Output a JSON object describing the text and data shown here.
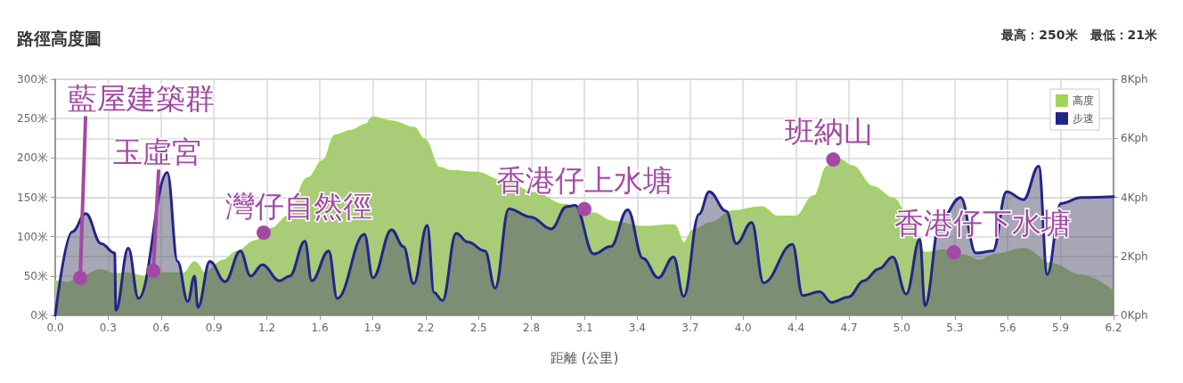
{
  "chart_data": {
    "type": "area",
    "title": "路徑高度圖",
    "subtitle": "最高：250米　最低：21米",
    "xlabel": "距離 (公里)",
    "xlim": [
      0,
      6.23
    ],
    "xticks": [
      {
        "value": 0,
        "label": "0.0"
      },
      {
        "value": 0.3115,
        "label": "0.3"
      },
      {
        "value": 0.623,
        "label": "0.6"
      },
      {
        "value": 0.9345,
        "label": "0.9"
      },
      {
        "value": 1.246,
        "label": "1.2"
      },
      {
        "value": 1.5575,
        "label": "1.6"
      },
      {
        "value": 1.869,
        "label": "1.9"
      },
      {
        "value": 2.1805,
        "label": "2.2"
      },
      {
        "value": 2.492,
        "label": "2.5"
      },
      {
        "value": 2.8035,
        "label": "2.8"
      },
      {
        "value": 3.115,
        "label": "3.1"
      },
      {
        "value": 3.4265,
        "label": "3.4"
      },
      {
        "value": 3.738,
        "label": "3.7"
      },
      {
        "value": 4.0495,
        "label": "4.0"
      },
      {
        "value": 4.361,
        "label": "4.4"
      },
      {
        "value": 4.6725,
        "label": "4.7"
      },
      {
        "value": 4.984,
        "label": "5.0"
      },
      {
        "value": 5.2955,
        "label": "5.3"
      },
      {
        "value": 5.607,
        "label": "5.6"
      },
      {
        "value": 5.9185,
        "label": "5.9"
      },
      {
        "value": 6.23,
        "label": "6.2"
      }
    ],
    "ylim": [
      0,
      300
    ],
    "yticks": [
      {
        "value": 0,
        "label": "0米"
      },
      {
        "value": 50,
        "label": "50米"
      },
      {
        "value": 100,
        "label": "100米"
      },
      {
        "value": 150,
        "label": "150米"
      },
      {
        "value": 200,
        "label": "200米"
      },
      {
        "value": 250,
        "label": "250米"
      },
      {
        "value": 300,
        "label": "300米"
      }
    ],
    "y2lim": [
      0,
      8
    ],
    "y2ticks": [
      {
        "value": 0,
        "label": "0Kph"
      },
      {
        "value": 2,
        "label": "2Kph"
      },
      {
        "value": 4,
        "label": "4Kph"
      },
      {
        "value": 6,
        "label": "6Kph"
      },
      {
        "value": 8,
        "label": "8Kph"
      }
    ],
    "grid": true,
    "legend": "top right",
    "marker": "none",
    "series": [
      {
        "name": "高度",
        "color": "#9fd65a",
        "x": [
          0,
          0.077,
          0.147,
          0.27,
          0.34,
          0.43,
          0.53,
          0.62,
          0.76,
          0.82,
          0.88,
          0.99,
          1.07,
          1.18,
          1.28,
          1.37,
          1.49,
          1.58,
          1.65,
          1.74,
          1.83,
          1.87,
          1.98,
          2.11,
          2.17,
          2.26,
          2.33,
          2.47,
          2.64,
          2.82,
          2.99,
          3.17,
          3.27,
          3.45,
          3.64,
          3.7,
          3.76,
          3.86,
          3.99,
          4.16,
          4.25,
          4.36,
          4.47,
          4.55,
          4.62,
          4.69,
          4.81,
          4.93,
          5.02,
          5.12,
          5.23,
          5.33,
          5.44,
          5.54,
          5.7,
          5.86,
          6.04,
          6.23
        ],
        "values": [
          43,
          41,
          48,
          57,
          52,
          53,
          48,
          53,
          53,
          67,
          53,
          69,
          80,
          94,
          110,
          125,
          174,
          196,
          228,
          234,
          242,
          251,
          246,
          238,
          223,
          187,
          183,
          181,
          170,
          155,
          140,
          129,
          119,
          112,
          114,
          91,
          108,
          117,
          132,
          137,
          125,
          125,
          151,
          189,
          197,
          189,
          163,
          148,
          125,
          79,
          82,
          76,
          69,
          77,
          84,
          65,
          50,
          29
        ]
      },
      {
        "name": "步速",
        "color": "#23248a",
        "axis": "y2",
        "x": [
          0,
          0.1,
          0.18,
          0.27,
          0.35,
          0.357,
          0.43,
          0.49,
          0.66,
          0.72,
          0.78,
          0.82,
          0.84,
          0.91,
          1.0,
          1.09,
          1.15,
          1.22,
          1.32,
          1.38,
          1.47,
          1.51,
          1.61,
          1.66,
          1.82,
          1.87,
          1.98,
          2.05,
          2.11,
          2.19,
          2.23,
          2.28,
          2.36,
          2.43,
          2.53,
          2.59,
          2.67,
          2.8,
          2.92,
          3.01,
          3.06,
          3.17,
          3.27,
          3.37,
          3.46,
          3.55,
          3.64,
          3.7,
          3.79,
          3.85,
          3.95,
          4.01,
          4.1,
          4.17,
          4.34,
          4.4,
          4.5,
          4.57,
          4.67,
          4.76,
          4.85,
          4.93,
          5.01,
          5.09,
          5.12,
          5.21,
          5.33,
          5.42,
          5.52,
          5.6,
          5.7,
          5.79,
          5.84,
          5.92,
          6.04,
          6.23
        ],
        "values": [
          0,
          2.83,
          3.45,
          2.43,
          2.11,
          0.17,
          2.28,
          0.57,
          4.84,
          1.83,
          0.47,
          1.33,
          0.27,
          1.83,
          1.14,
          2.18,
          1.33,
          1.71,
          1.17,
          1.33,
          2.51,
          1.17,
          2.18,
          0.57,
          2.75,
          1.27,
          2.9,
          2.33,
          1.07,
          3.05,
          0.77,
          0.5,
          2.78,
          2.48,
          2.18,
          0.92,
          3.61,
          3.33,
          2.93,
          3.68,
          3.73,
          2.08,
          2.33,
          3.58,
          1.93,
          1.27,
          1.98,
          0.64,
          3.43,
          4.19,
          3.53,
          2.43,
          3.15,
          1.1,
          2.41,
          0.67,
          0.8,
          0.44,
          0.62,
          1.17,
          1.58,
          1.98,
          0.72,
          2.58,
          0.32,
          3.23,
          3.99,
          2.11,
          2.18,
          4.19,
          3.92,
          5.06,
          1.38,
          3.79,
          3.99,
          4.02
        ]
      }
    ],
    "annotations": [
      {
        "text": "藍屋建築群",
        "x": 0.147,
        "y": 47.5
      },
      {
        "text": "玉虛宮",
        "x": 0.577,
        "y": 56.6
      },
      {
        "text": "灣仔自然徑",
        "x": 1.227,
        "y": 105
      },
      {
        "text": "香港仔上水塘",
        "x": 3.115,
        "y": 135
      },
      {
        "text": "班納山",
        "x": 4.58,
        "y": 198
      },
      {
        "text": "香港仔下水塘",
        "x": 5.29,
        "y": 80
      }
    ]
  }
}
